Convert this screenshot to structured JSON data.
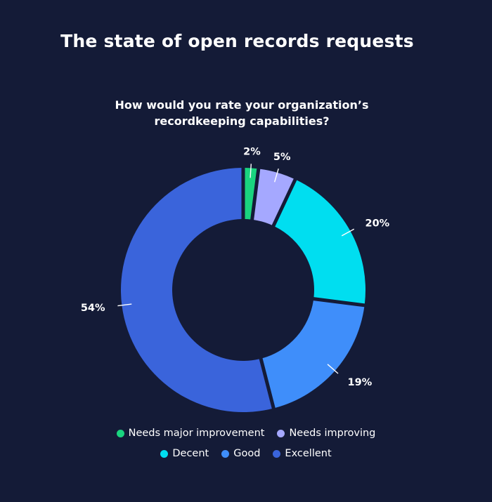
{
  "title": "The state of open records requests",
  "chart_data": {
    "type": "pie",
    "subtitle": "How would you rate your organization’s recordkeeping capabilities?",
    "subtitle_lines": [
      "How would you rate your organization’s",
      "recordkeeping capabilities?"
    ],
    "categories": [
      "Needs major improvement",
      "Needs improving",
      "Decent",
      "Good",
      "Excellent"
    ],
    "values": [
      2,
      5,
      20,
      19,
      54
    ],
    "data_labels": [
      "2%",
      "5%",
      "20%",
      "19%",
      "54%"
    ],
    "colors": [
      "#1ad47f",
      "#a5a8ff",
      "#00def0",
      "#3f8efa",
      "#3a64db"
    ],
    "donut": true,
    "legend_position": "bottom"
  }
}
